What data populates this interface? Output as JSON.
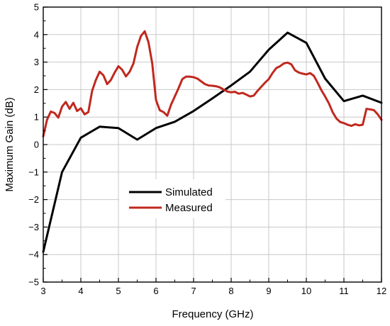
{
  "chart_data": {
    "type": "line",
    "xlabel": "Frequency (GHz)",
    "ylabel": "Maximum Gain (dB)",
    "xlim": [
      3,
      12
    ],
    "ylim": [
      -5,
      5
    ],
    "x_ticks": [
      "3",
      "4",
      "5",
      "6",
      "7",
      "8",
      "9",
      "10",
      "11",
      "12"
    ],
    "y_ticks": [
      "−5",
      "−4",
      "−3",
      "−2",
      "−1",
      "0",
      "1",
      "2",
      "3",
      "4",
      "5"
    ],
    "grid": true,
    "legend_position": "center-left",
    "series": [
      {
        "name": "Simulated",
        "color": "#000000",
        "x": [
          3.0,
          3.5,
          4.0,
          4.5,
          5.0,
          5.5,
          6.0,
          6.5,
          7.0,
          7.5,
          8.0,
          8.5,
          9.0,
          9.5,
          10.0,
          10.5,
          11.0,
          11.5,
          12.0
        ],
        "y": [
          -3.9,
          -1.0,
          0.25,
          0.65,
          0.6,
          0.18,
          0.6,
          0.83,
          1.22,
          1.68,
          2.15,
          2.65,
          3.45,
          4.07,
          3.7,
          2.4,
          1.58,
          1.78,
          1.52
        ]
      },
      {
        "name": "Measured",
        "color": "#c0281e",
        "x": [
          3.0,
          3.1,
          3.2,
          3.3,
          3.4,
          3.5,
          3.6,
          3.7,
          3.8,
          3.9,
          4.0,
          4.1,
          4.2,
          4.3,
          4.4,
          4.5,
          4.6,
          4.7,
          4.8,
          4.9,
          5.0,
          5.1,
          5.2,
          5.3,
          5.4,
          5.5,
          5.6,
          5.7,
          5.8,
          5.9,
          6.0,
          6.1,
          6.2,
          6.3,
          6.4,
          6.5,
          6.6,
          6.7,
          6.8,
          6.9,
          7.0,
          7.1,
          7.2,
          7.3,
          7.4,
          7.5,
          7.6,
          7.7,
          7.8,
          7.9,
          8.0,
          8.1,
          8.2,
          8.3,
          8.4,
          8.5,
          8.6,
          8.7,
          8.8,
          8.9,
          9.0,
          9.1,
          9.2,
          9.3,
          9.4,
          9.5,
          9.6,
          9.7,
          9.8,
          9.9,
          10.0,
          10.1,
          10.2,
          10.3,
          10.4,
          10.5,
          10.6,
          10.7,
          10.8,
          10.9,
          11.0,
          11.1,
          11.2,
          11.3,
          11.4,
          11.5,
          11.6,
          11.7,
          11.8,
          11.9,
          12.0
        ],
        "y": [
          0.3,
          0.9,
          1.2,
          1.15,
          0.98,
          1.38,
          1.55,
          1.3,
          1.52,
          1.22,
          1.32,
          1.1,
          1.18,
          1.95,
          2.35,
          2.65,
          2.52,
          2.2,
          2.35,
          2.62,
          2.85,
          2.72,
          2.48,
          2.65,
          2.95,
          3.55,
          3.95,
          4.12,
          3.72,
          2.95,
          1.62,
          1.25,
          1.18,
          1.05,
          1.45,
          1.75,
          2.05,
          2.38,
          2.47,
          2.47,
          2.45,
          2.4,
          2.3,
          2.2,
          2.15,
          2.14,
          2.12,
          2.08,
          2.0,
          1.93,
          1.9,
          1.92,
          1.85,
          1.88,
          1.82,
          1.75,
          1.78,
          1.95,
          2.1,
          2.25,
          2.38,
          2.6,
          2.78,
          2.85,
          2.95,
          2.98,
          2.92,
          2.7,
          2.62,
          2.58,
          2.55,
          2.6,
          2.5,
          2.25,
          1.98,
          1.75,
          1.5,
          1.18,
          0.95,
          0.82,
          0.78,
          0.72,
          0.68,
          0.74,
          0.7,
          0.72,
          1.3,
          1.28,
          1.25,
          1.1,
          0.9
        ]
      }
    ]
  }
}
